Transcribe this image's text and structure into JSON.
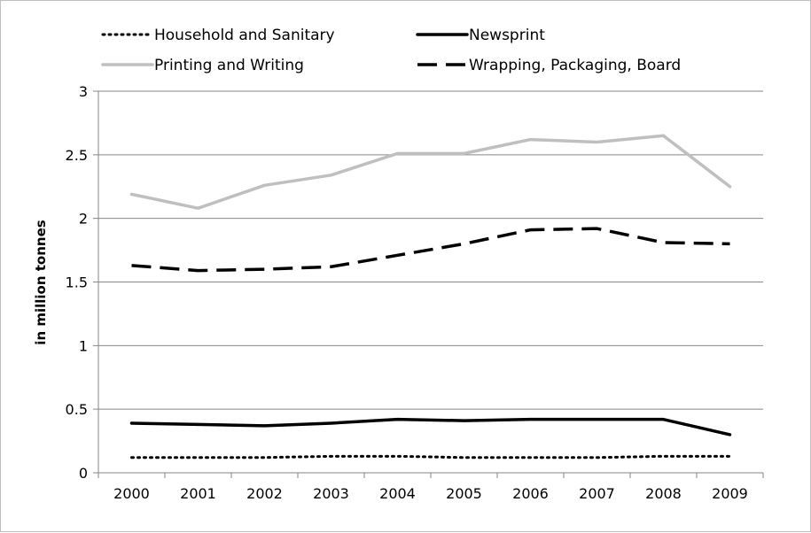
{
  "chart_data": {
    "type": "line",
    "title": "",
    "xlabel": "",
    "ylabel": "in million tonnes",
    "ylim": [
      0,
      3
    ],
    "y_ticks": [
      "0",
      "0.5",
      "1",
      "1.5",
      "2",
      "2.5",
      "3"
    ],
    "categories": [
      "2000",
      "2001",
      "2002",
      "2003",
      "2004",
      "2005",
      "2006",
      "2007",
      "2008",
      "2009"
    ],
    "grid": "horizontal",
    "legend_position": "top",
    "series": [
      {
        "name": "Household and Sanitary",
        "color": "#000000",
        "style": "dotted",
        "values": [
          0.12,
          0.12,
          0.12,
          0.13,
          0.13,
          0.12,
          0.12,
          0.12,
          0.13,
          0.13
        ]
      },
      {
        "name": "Newsprint",
        "color": "#000000",
        "style": "solid",
        "values": [
          0.39,
          0.38,
          0.37,
          0.39,
          0.42,
          0.41,
          0.42,
          0.42,
          0.42,
          0.3
        ]
      },
      {
        "name": "Printing and Writing",
        "color": "#bfbfbf",
        "style": "solid",
        "values": [
          2.19,
          2.08,
          2.26,
          2.34,
          2.51,
          2.51,
          2.62,
          2.6,
          2.65,
          2.25
        ]
      },
      {
        "name": "Wrapping, Packaging, Board",
        "color": "#000000",
        "style": "dashed",
        "values": [
          1.63,
          1.59,
          1.6,
          1.62,
          1.71,
          1.8,
          1.91,
          1.92,
          1.81,
          1.8
        ]
      }
    ]
  }
}
